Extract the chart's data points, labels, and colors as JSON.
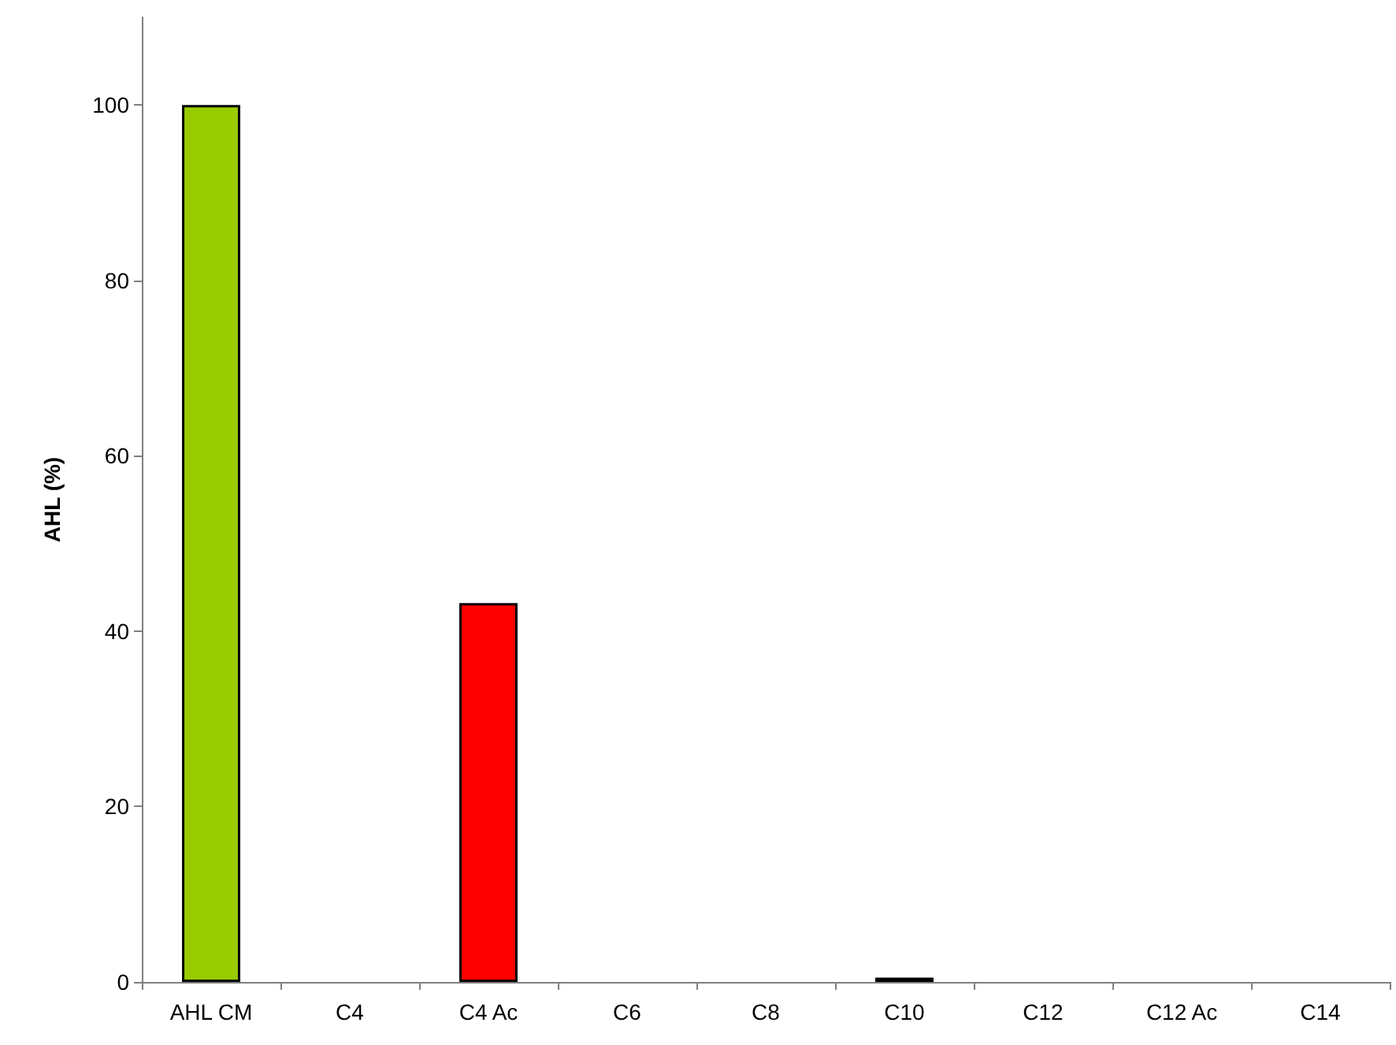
{
  "chart_data": {
    "type": "bar",
    "ylabel": "AHL (%)",
    "categories": [
      "AHL CM",
      "C4",
      "C4 Ac",
      "C6",
      "C8",
      "C10",
      "C12",
      "C12 Ac",
      "C14"
    ],
    "values": [
      100,
      0,
      43.2,
      0,
      0,
      0.5,
      0,
      0,
      0
    ],
    "colors": [
      "#99cc00",
      null,
      "#ff0000",
      null,
      null,
      "#000000",
      null,
      null,
      null
    ],
    "ylim": [
      0,
      110
    ],
    "yticks": [
      0,
      20,
      40,
      60,
      80,
      100
    ],
    "grid": false
  }
}
